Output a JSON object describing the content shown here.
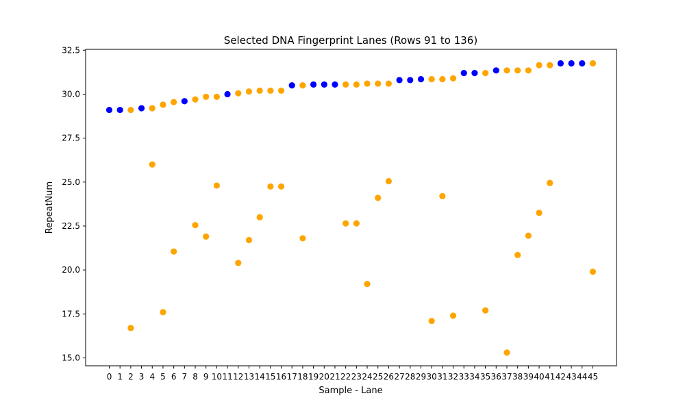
{
  "chart_data": {
    "type": "scatter",
    "title": "Selected DNA Fingerprint Lanes (Rows 91 to 136)",
    "xlabel": "Sample - Lane",
    "ylabel": "RepeatNum",
    "x_ticks": [
      "0",
      "1",
      "2",
      "3",
      "4",
      "5",
      "6",
      "7",
      "8",
      "9",
      "10",
      "11",
      "12",
      "13",
      "14",
      "15",
      "16",
      "17",
      "18",
      "19",
      "20",
      "21",
      "22",
      "23",
      "24",
      "25",
      "26",
      "27",
      "28",
      "29",
      "30",
      "31",
      "32",
      "33",
      "34",
      "35",
      "36",
      "37",
      "38",
      "39",
      "40",
      "41",
      "42",
      "43",
      "44",
      "45"
    ],
    "y_ticks": [
      15.0,
      17.5,
      20.0,
      22.5,
      25.0,
      27.5,
      30.0,
      32.5
    ],
    "y_tick_labels": [
      "15.0",
      "17.5",
      "20.0",
      "22.5",
      "25.0",
      "27.5",
      "30.0",
      "32.5"
    ],
    "xlim": [
      -2.2,
      47.2
    ],
    "ylim": [
      14.55,
      32.55
    ],
    "grid": false,
    "colors": {
      "blue": "#0000ff",
      "orange": "#ffa500"
    },
    "points": [
      {
        "x": 0,
        "y": 29.1,
        "color": "blue"
      },
      {
        "x": 1,
        "y": 29.1,
        "color": "blue"
      },
      {
        "x": 2,
        "y": 29.1,
        "color": "orange"
      },
      {
        "x": 2,
        "y": 16.7,
        "color": "orange"
      },
      {
        "x": 3,
        "y": 29.2,
        "color": "blue"
      },
      {
        "x": 4,
        "y": 29.2,
        "color": "orange"
      },
      {
        "x": 4,
        "y": 26.0,
        "color": "orange"
      },
      {
        "x": 5,
        "y": 29.4,
        "color": "orange"
      },
      {
        "x": 5,
        "y": 17.6,
        "color": "orange"
      },
      {
        "x": 6,
        "y": 29.55,
        "color": "orange"
      },
      {
        "x": 6,
        "y": 21.05,
        "color": "orange"
      },
      {
        "x": 7,
        "y": 29.6,
        "color": "blue"
      },
      {
        "x": 8,
        "y": 29.7,
        "color": "orange"
      },
      {
        "x": 8,
        "y": 22.55,
        "color": "orange"
      },
      {
        "x": 9,
        "y": 29.85,
        "color": "orange"
      },
      {
        "x": 9,
        "y": 21.9,
        "color": "orange"
      },
      {
        "x": 10,
        "y": 29.85,
        "color": "orange"
      },
      {
        "x": 10,
        "y": 24.8,
        "color": "orange"
      },
      {
        "x": 11,
        "y": 30.0,
        "color": "blue"
      },
      {
        "x": 12,
        "y": 30.05,
        "color": "orange"
      },
      {
        "x": 12,
        "y": 20.4,
        "color": "orange"
      },
      {
        "x": 13,
        "y": 30.15,
        "color": "orange"
      },
      {
        "x": 13,
        "y": 21.7,
        "color": "orange"
      },
      {
        "x": 14,
        "y": 30.2,
        "color": "orange"
      },
      {
        "x": 14,
        "y": 23.0,
        "color": "orange"
      },
      {
        "x": 15,
        "y": 30.2,
        "color": "orange"
      },
      {
        "x": 15,
        "y": 24.75,
        "color": "orange"
      },
      {
        "x": 16,
        "y": 30.2,
        "color": "orange"
      },
      {
        "x": 16,
        "y": 24.75,
        "color": "orange"
      },
      {
        "x": 17,
        "y": 30.5,
        "color": "blue"
      },
      {
        "x": 18,
        "y": 30.5,
        "color": "orange"
      },
      {
        "x": 18,
        "y": 21.8,
        "color": "orange"
      },
      {
        "x": 19,
        "y": 30.55,
        "color": "blue"
      },
      {
        "x": 20,
        "y": 30.55,
        "color": "blue"
      },
      {
        "x": 21,
        "y": 30.55,
        "color": "blue"
      },
      {
        "x": 22,
        "y": 30.55,
        "color": "orange"
      },
      {
        "x": 22,
        "y": 22.65,
        "color": "orange"
      },
      {
        "x": 23,
        "y": 30.55,
        "color": "orange"
      },
      {
        "x": 23,
        "y": 22.65,
        "color": "orange"
      },
      {
        "x": 24,
        "y": 30.6,
        "color": "orange"
      },
      {
        "x": 24,
        "y": 19.2,
        "color": "orange"
      },
      {
        "x": 25,
        "y": 30.6,
        "color": "orange"
      },
      {
        "x": 25,
        "y": 24.1,
        "color": "orange"
      },
      {
        "x": 26,
        "y": 30.6,
        "color": "orange"
      },
      {
        "x": 26,
        "y": 25.05,
        "color": "orange"
      },
      {
        "x": 27,
        "y": 30.8,
        "color": "blue"
      },
      {
        "x": 28,
        "y": 30.8,
        "color": "blue"
      },
      {
        "x": 29,
        "y": 30.85,
        "color": "blue"
      },
      {
        "x": 30,
        "y": 30.85,
        "color": "orange"
      },
      {
        "x": 30,
        "y": 17.1,
        "color": "orange"
      },
      {
        "x": 31,
        "y": 30.85,
        "color": "orange"
      },
      {
        "x": 31,
        "y": 24.2,
        "color": "orange"
      },
      {
        "x": 32,
        "y": 30.9,
        "color": "orange"
      },
      {
        "x": 32,
        "y": 17.4,
        "color": "orange"
      },
      {
        "x": 33,
        "y": 31.2,
        "color": "blue"
      },
      {
        "x": 34,
        "y": 31.2,
        "color": "blue"
      },
      {
        "x": 35,
        "y": 31.2,
        "color": "orange"
      },
      {
        "x": 35,
        "y": 17.7,
        "color": "orange"
      },
      {
        "x": 36,
        "y": 31.35,
        "color": "blue"
      },
      {
        "x": 37,
        "y": 31.35,
        "color": "orange"
      },
      {
        "x": 37,
        "y": 15.3,
        "color": "orange"
      },
      {
        "x": 38,
        "y": 31.35,
        "color": "orange"
      },
      {
        "x": 38,
        "y": 20.85,
        "color": "orange"
      },
      {
        "x": 39,
        "y": 31.35,
        "color": "orange"
      },
      {
        "x": 39,
        "y": 21.95,
        "color": "orange"
      },
      {
        "x": 40,
        "y": 31.65,
        "color": "orange"
      },
      {
        "x": 40,
        "y": 23.25,
        "color": "orange"
      },
      {
        "x": 41,
        "y": 31.65,
        "color": "orange"
      },
      {
        "x": 41,
        "y": 24.95,
        "color": "orange"
      },
      {
        "x": 42,
        "y": 31.75,
        "color": "blue"
      },
      {
        "x": 43,
        "y": 31.75,
        "color": "blue"
      },
      {
        "x": 44,
        "y": 31.75,
        "color": "blue"
      },
      {
        "x": 45,
        "y": 31.75,
        "color": "orange"
      },
      {
        "x": 45,
        "y": 19.9,
        "color": "orange"
      }
    ]
  }
}
